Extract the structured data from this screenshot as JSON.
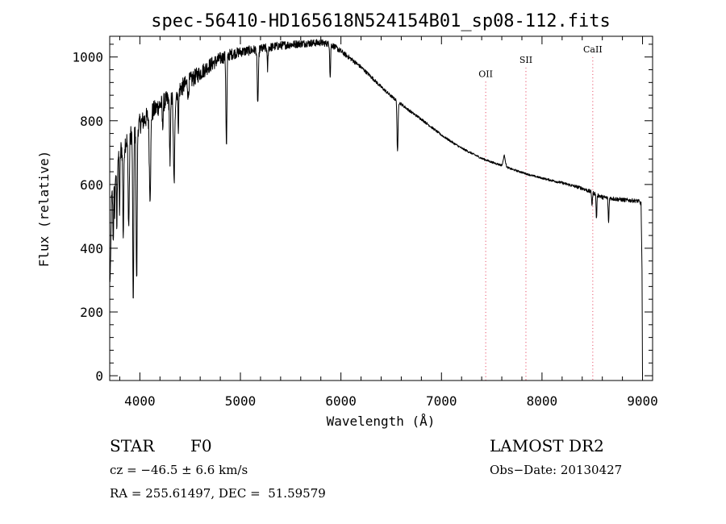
{
  "chart_data": {
    "type": "line",
    "title": "spec-56410-HD165618N524154B01_sp08-112.fits",
    "xlabel": "Wavelength (Å)",
    "ylabel": "Flux (relative)",
    "xlim": [
      3700,
      9100
    ],
    "ylim": [
      -15,
      1065
    ],
    "xticks": [
      4000,
      5000,
      6000,
      7000,
      8000,
      9000
    ],
    "yticks": [
      0,
      200,
      400,
      600,
      800,
      1000
    ],
    "grid": false,
    "line_color": "#000000",
    "line_markers": [
      {
        "label": "OII",
        "x": 7440,
        "label_y": 948
      },
      {
        "label": "SII",
        "x": 7840,
        "label_y": 992
      },
      {
        "label": "CaII",
        "x": 8505,
        "label_y": 1025
      }
    ],
    "marker_color": "#e8536b",
    "series": [
      {
        "continuum": [
          [
            3700,
            340
          ],
          [
            3720,
            580
          ],
          [
            3780,
            690
          ],
          [
            3850,
            730
          ],
          [
            3920,
            760
          ],
          [
            4000,
            790
          ],
          [
            4100,
            820
          ],
          [
            4200,
            850
          ],
          [
            4300,
            870
          ],
          [
            4400,
            900
          ],
          [
            4500,
            925
          ],
          [
            4600,
            950
          ],
          [
            4700,
            975
          ],
          [
            4800,
            995
          ],
          [
            4900,
            1008
          ],
          [
            5000,
            1016
          ],
          [
            5200,
            1025
          ],
          [
            5400,
            1036
          ],
          [
            5600,
            1042
          ],
          [
            5800,
            1045
          ],
          [
            5900,
            1040
          ],
          [
            6000,
            1018
          ],
          [
            6100,
            994
          ],
          [
            6200,
            968
          ],
          [
            6300,
            938
          ],
          [
            6400,
            906
          ],
          [
            6500,
            877
          ],
          [
            6600,
            852
          ],
          [
            6700,
            827
          ],
          [
            6800,
            805
          ],
          [
            6900,
            780
          ],
          [
            7000,
            755
          ],
          [
            7100,
            734
          ],
          [
            7200,
            714
          ],
          [
            7300,
            698
          ],
          [
            7400,
            682
          ],
          [
            7500,
            670
          ],
          [
            7600,
            660
          ],
          [
            7700,
            648
          ],
          [
            7800,
            638
          ],
          [
            7900,
            628
          ],
          [
            8000,
            620
          ],
          [
            8200,
            605
          ],
          [
            8400,
            588
          ],
          [
            8500,
            575
          ],
          [
            8600,
            560
          ],
          [
            8800,
            552
          ],
          [
            8960,
            548
          ],
          [
            8985,
            540
          ],
          [
            8995,
            330
          ],
          [
            9000,
            0
          ]
        ],
        "absorption_lines": [
          [
            3705,
            300,
            5
          ],
          [
            3720,
            550,
            4
          ],
          [
            3735,
            420,
            4
          ],
          [
            3750,
            520,
            4
          ],
          [
            3771,
            460,
            4
          ],
          [
            3798,
            520,
            4
          ],
          [
            3835,
            440,
            5
          ],
          [
            3889,
            470,
            6
          ],
          [
            3934,
            200,
            5
          ],
          [
            3968,
            290,
            5
          ],
          [
            4101,
            570,
            7
          ],
          [
            4226,
            780,
            4
          ],
          [
            4300,
            670,
            5
          ],
          [
            4340,
            605,
            7
          ],
          [
            4383,
            785,
            4
          ],
          [
            4481,
            870,
            4
          ],
          [
            4861,
            715,
            5
          ],
          [
            5173,
            855,
            6
          ],
          [
            5270,
            960,
            4
          ],
          [
            5893,
            935,
            4
          ],
          [
            6563,
            700,
            5
          ],
          [
            8498,
            535,
            4
          ],
          [
            8542,
            490,
            4
          ],
          [
            8662,
            478,
            4
          ]
        ],
        "emission_features": [
          [
            7625,
            690,
            10
          ]
        ],
        "noise_level": [
          [
            3700,
            70
          ],
          [
            4500,
            55
          ],
          [
            5000,
            32
          ],
          [
            5800,
            22
          ],
          [
            6200,
            12
          ],
          [
            7000,
            7
          ],
          [
            8000,
            6
          ],
          [
            8600,
            14
          ],
          [
            9000,
            12
          ]
        ]
      }
    ]
  },
  "info": {
    "object_class": "STAR",
    "subclass": "F0",
    "survey": "LAMOST DR2",
    "velocity": "cz = −46.5 ± 6.6 km/s",
    "obs_date": "Obs−Date: 20130427",
    "coords": "RA = 255.61497, DEC =  51.59579"
  }
}
